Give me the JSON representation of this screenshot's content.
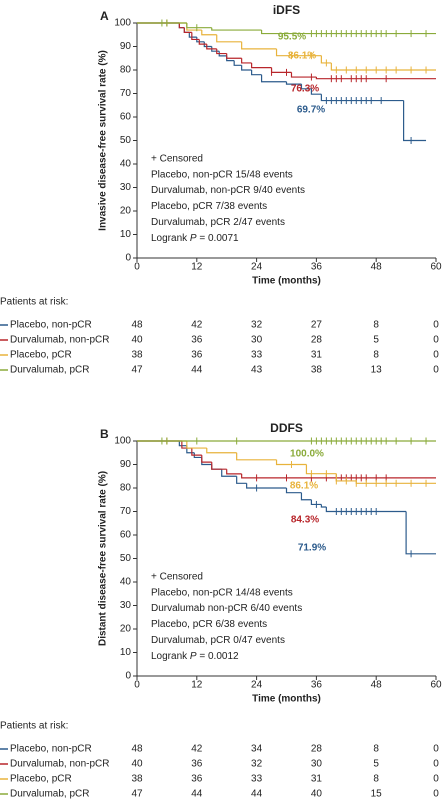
{
  "chart_data": [
    {
      "type": "line",
      "panel_label": "A",
      "title": "iDFS",
      "ylabel": "Invasive disease-free survival rate (%)",
      "xlabel": "Time (months)",
      "xlim": [
        0,
        60
      ],
      "xticks": [
        0,
        12,
        24,
        36,
        48,
        60
      ],
      "ylim": [
        0,
        100
      ],
      "yticks": [
        0,
        10,
        20,
        30,
        40,
        50,
        60,
        70,
        80,
        90,
        100
      ],
      "censor_label": "+ Censored",
      "legend_lines": [
        "Placebo, non-pCR 15/48 events",
        "Durvalumab, non-pCR 9/40 events",
        "Placebo, pCR 7/38 events",
        "Durvalumab, pCR 2/47 events"
      ],
      "logrank": {
        "text": "Logrank",
        "p_symbol": "P",
        "p_value": "= 0.0071"
      },
      "annotations": [
        {
          "text": "95.5%",
          "color": "#8aab3a"
        },
        {
          "text": "86.1%",
          "color": "#e8b33c"
        },
        {
          "text": "76.3%",
          "color": "#b8262b"
        },
        {
          "text": "69.7%",
          "color": "#2c5b8c"
        }
      ],
      "at_risk_title": "Patients at risk:",
      "series": [
        {
          "name": "Placebo, non-pCR",
          "color": "#2c5b8c",
          "x": [
            0,
            8.5,
            9.5,
            10.5,
            12,
            13.5,
            15,
            16.5,
            18,
            19.5,
            21,
            23,
            25,
            30,
            33,
            35,
            37,
            53.5,
            58
          ],
          "values": [
            100,
            98,
            96,
            94,
            92,
            90,
            88,
            86,
            84,
            82,
            80,
            78,
            75,
            74,
            72,
            69.7,
            67,
            50,
            50
          ],
          "censor_x": [
            38,
            39,
            40,
            41,
            42,
            43,
            44,
            45,
            46,
            47,
            49,
            55
          ],
          "at_risk": [
            48,
            42,
            32,
            27,
            8,
            0
          ]
        },
        {
          "name": "Durvalumab, non-pCR",
          "color": "#b8262b",
          "x": [
            0,
            8.5,
            9.5,
            11,
            12.5,
            14,
            16,
            18,
            21,
            23,
            27,
            31,
            36,
            60
          ],
          "values": [
            100,
            98,
            96,
            93,
            91,
            89,
            87,
            85,
            83,
            81,
            79,
            77,
            76.3,
            76.3
          ],
          "censor_x": [
            6,
            27,
            30,
            35,
            39,
            40,
            41,
            43,
            44,
            45,
            46,
            50
          ],
          "at_risk": [
            40,
            36,
            30,
            28,
            5,
            0
          ]
        },
        {
          "name": "Placebo, pCR",
          "color": "#e8b33c",
          "x": [
            0,
            10,
            13,
            16,
            21,
            28,
            37,
            39,
            60
          ],
          "values": [
            100,
            97,
            95,
            92,
            89,
            86.1,
            83,
            80,
            80
          ],
          "censor_x": [
            6,
            31,
            35,
            38,
            40,
            42,
            44,
            46,
            48,
            50,
            52,
            55,
            58
          ],
          "at_risk": [
            38,
            36,
            33,
            31,
            8,
            0
          ]
        },
        {
          "name": "Durvalumab, pCR",
          "color": "#8aab3a",
          "x": [
            0,
            10,
            15,
            25,
            60
          ],
          "values": [
            100,
            98,
            97,
            95.5,
            95.5
          ],
          "censor_x": [
            5,
            6,
            12,
            35,
            36,
            37,
            38,
            39,
            40,
            41,
            42,
            43,
            44,
            45,
            46,
            47,
            48,
            49,
            50,
            52,
            55,
            58
          ],
          "at_risk": [
            47,
            44,
            43,
            38,
            13,
            0
          ]
        }
      ]
    },
    {
      "type": "line",
      "panel_label": "B",
      "title": "DDFS",
      "ylabel": "Distant disease-free survival rate (%)",
      "xlabel": "Time (months)",
      "xlim": [
        0,
        60
      ],
      "xticks": [
        0,
        12,
        24,
        36,
        48,
        60
      ],
      "ylim": [
        0,
        100
      ],
      "yticks": [
        0,
        10,
        20,
        30,
        40,
        50,
        60,
        70,
        80,
        90,
        100
      ],
      "censor_label": "+ Censored",
      "legend_lines": [
        "Placebo, non-pCR 14/48 events",
        "Durvalumab non-pCR 6/40 events",
        "Placebo, pCR 6/38 events",
        "Durvalumab, pCR 0/47 events"
      ],
      "logrank": {
        "text": "Logrank",
        "p_symbol": "P",
        "p_value": "= 0.0012"
      },
      "annotations": [
        {
          "text": "100.0%",
          "color": "#8aab3a"
        },
        {
          "text": "86.1%",
          "color": "#e8b33c"
        },
        {
          "text": "84.3%",
          "color": "#b8262b"
        },
        {
          "text": "71.9%",
          "color": "#2c5b8c"
        }
      ],
      "at_risk_title": "Patients at risk:",
      "series": [
        {
          "name": "Placebo, non-pCR",
          "color": "#2c5b8c",
          "x": [
            0,
            8.5,
            10,
            11.5,
            13,
            15,
            17,
            20,
            22,
            30,
            33,
            35,
            37,
            38,
            54,
            60
          ],
          "values": [
            100,
            98,
            95,
            93,
            90,
            88,
            85,
            82,
            80,
            78,
            75,
            73,
            71.9,
            70,
            52,
            52
          ],
          "censor_x": [
            24,
            36,
            40,
            41,
            42,
            43,
            44,
            45,
            46,
            47,
            48,
            55
          ],
          "at_risk": [
            48,
            42,
            34,
            28,
            8,
            0
          ]
        },
        {
          "name": "Durvalumab, non-pCR",
          "color": "#b8262b",
          "x": [
            0,
            9,
            11,
            13,
            15,
            18,
            21,
            60
          ],
          "values": [
            100,
            97,
            94,
            91,
            88,
            86,
            84.3,
            84.3
          ],
          "censor_x": [
            6,
            24,
            30,
            35,
            38,
            40,
            41,
            42,
            43,
            44,
            45,
            46,
            48,
            50
          ],
          "at_risk": [
            40,
            36,
            32,
            30,
            5,
            0
          ]
        },
        {
          "name": "Placebo, pCR",
          "color": "#e8b33c",
          "x": [
            0,
            10,
            14,
            20,
            28,
            34,
            40,
            44,
            60
          ],
          "values": [
            100,
            97,
            95,
            92,
            90,
            86.1,
            83,
            82,
            82
          ],
          "censor_x": [
            6,
            31,
            35,
            38,
            40,
            42,
            44,
            46,
            48,
            50,
            52,
            55,
            58
          ],
          "at_risk": [
            38,
            36,
            33,
            31,
            8,
            0
          ]
        },
        {
          "name": "Durvalumab, pCR",
          "color": "#8aab3a",
          "x": [
            0,
            60
          ],
          "values": [
            100,
            100
          ],
          "censor_x": [
            5,
            6,
            12,
            20,
            35,
            36,
            37,
            38,
            39,
            40,
            41,
            42,
            43,
            44,
            45,
            46,
            47,
            48,
            49,
            50,
            52,
            55,
            58
          ],
          "at_risk": [
            47,
            44,
            44,
            40,
            15,
            0
          ]
        }
      ]
    }
  ]
}
